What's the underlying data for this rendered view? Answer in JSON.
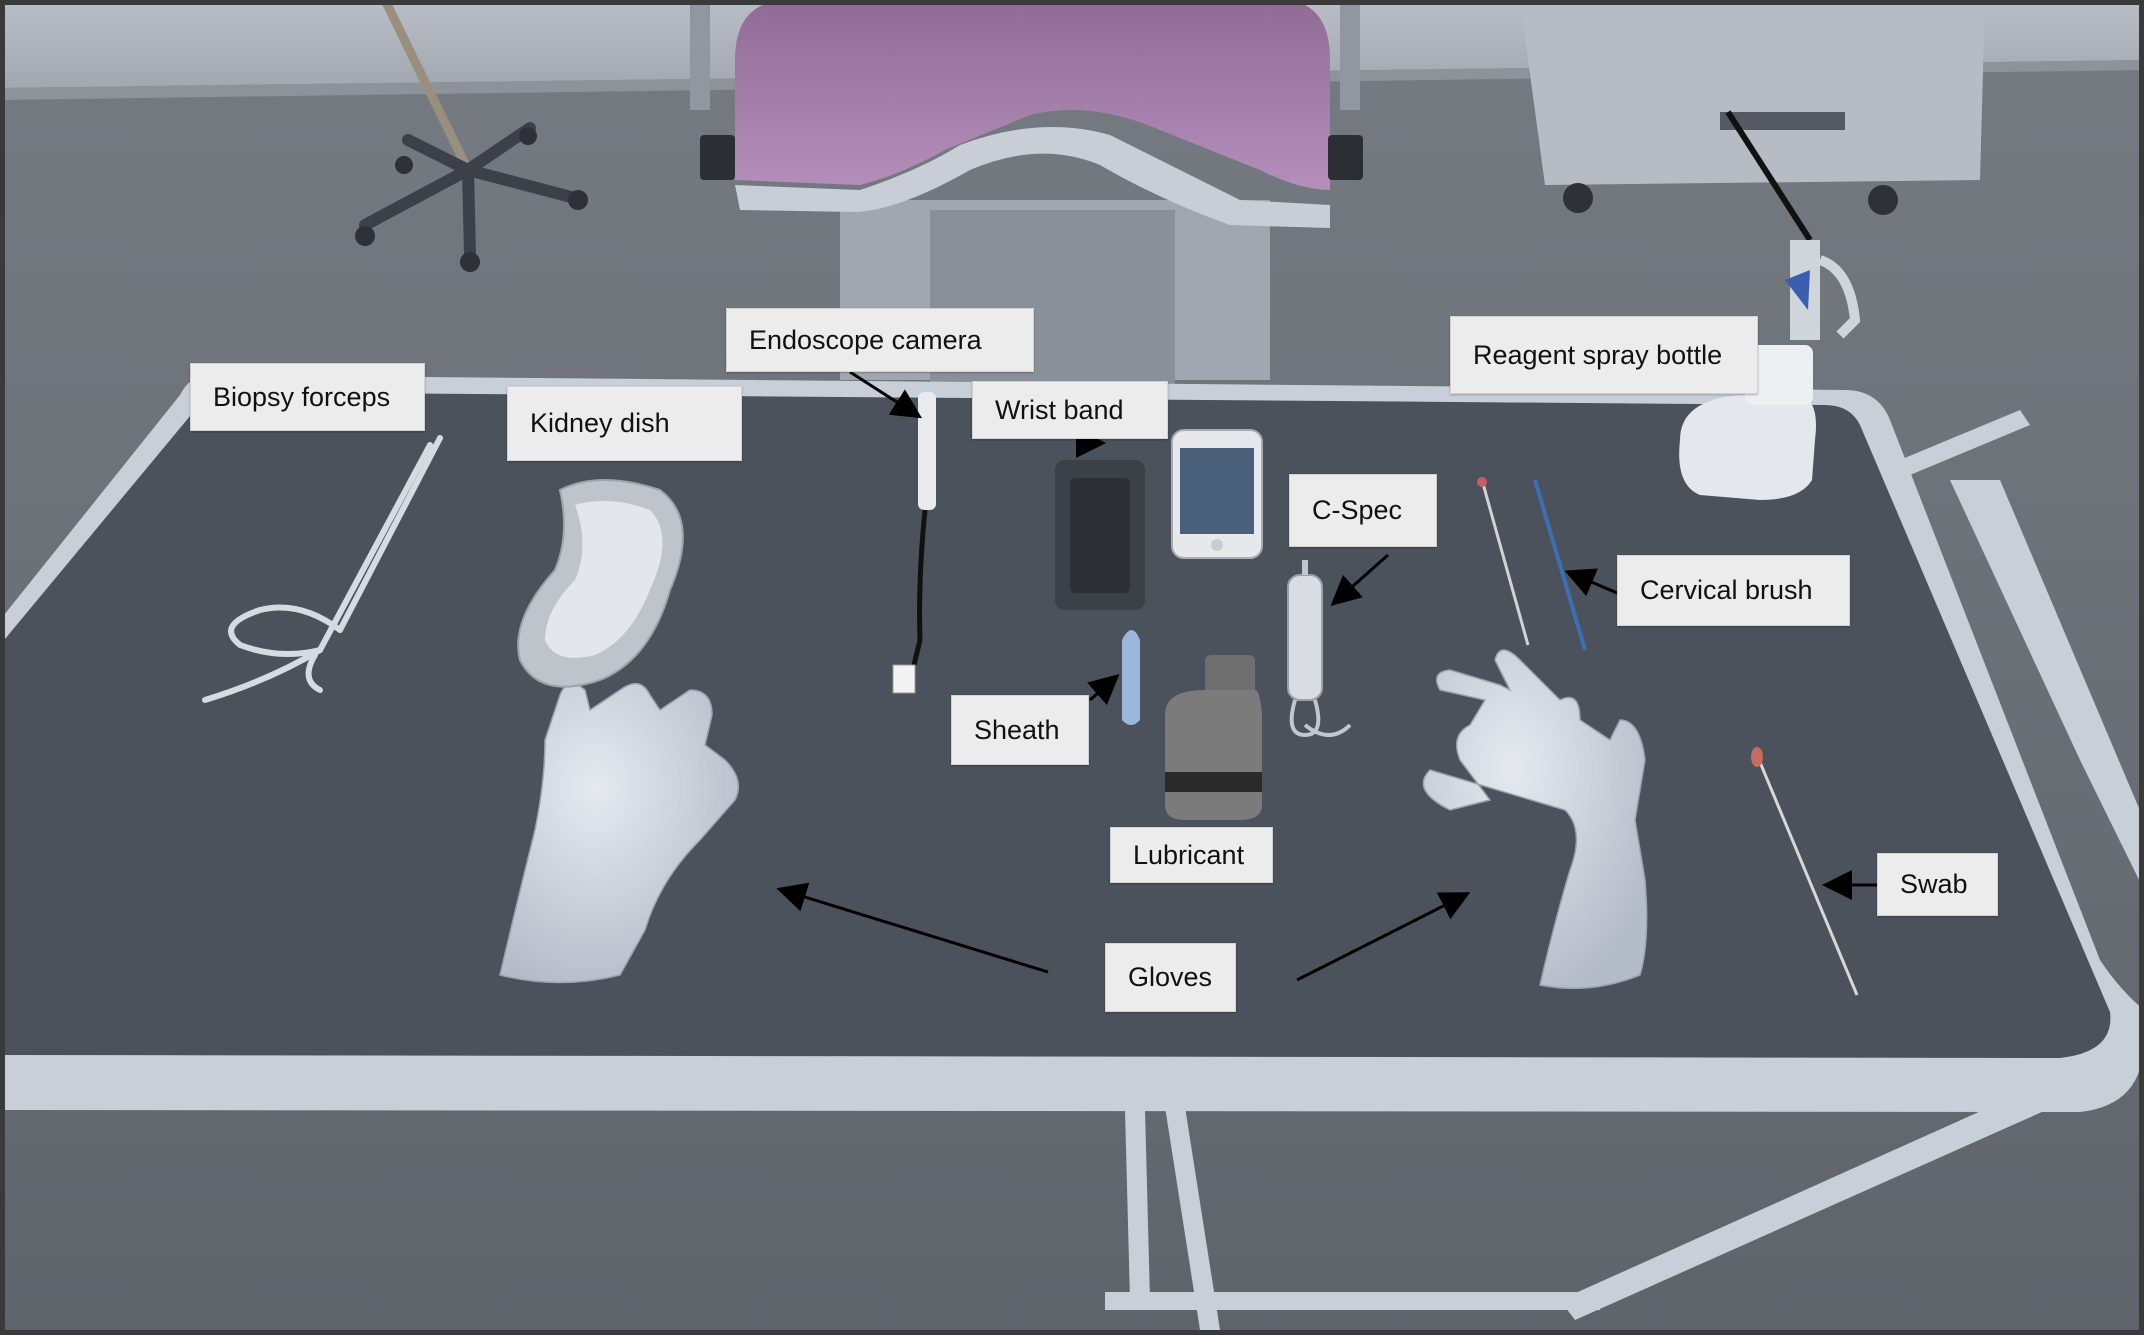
{
  "labels": {
    "biopsy_forceps": "Biopsy forceps",
    "kidney_dish": "Kidney dish",
    "endoscope_camera": "Endoscope camera",
    "wrist_band": "Wrist band",
    "reagent_spray_bottle": "Reagent spray bottle",
    "c_spec": "C-Spec",
    "cervical_brush": "Cervical brush",
    "sheath": "Sheath",
    "lubricant": "Lubricant",
    "swab": "Swab",
    "gloves": "Gloves"
  },
  "colors": {
    "floor": "#6e737a",
    "table_top": "#4b525c",
    "table_rim": "#c9cfd8",
    "label_bg": "#ececec",
    "chair_cushion": "#a07aa6",
    "arrow": "#000000",
    "gloves": "#d3d9e2"
  }
}
